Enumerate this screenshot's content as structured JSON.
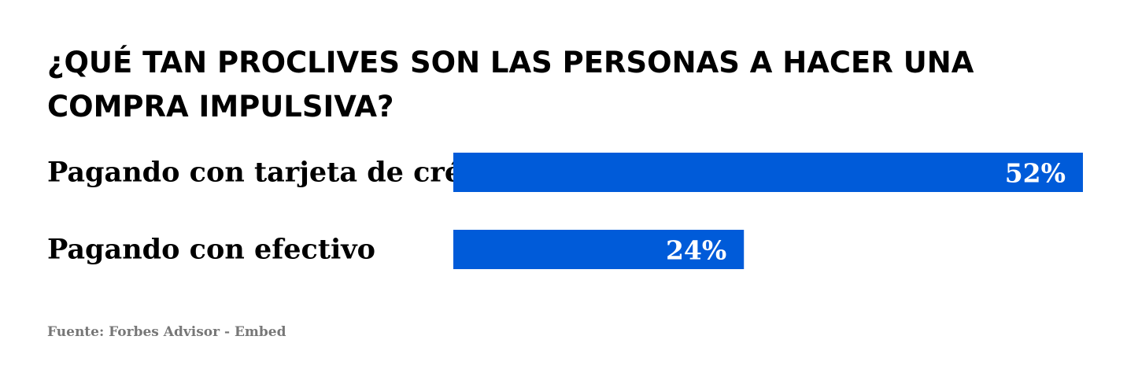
{
  "chart_data": {
    "type": "bar",
    "orientation": "horizontal",
    "title": "¿QUÉ TAN PROCLIVES SON LAS PERSONAS A HACER UNA COMPRA IMPULSIVA?",
    "categories": [
      "Pagando con tarjeta de crédito",
      "Pagando con efectivo"
    ],
    "values": [
      52,
      24
    ],
    "value_labels": [
      "52%",
      "24%"
    ],
    "unit": "%",
    "xlim": [
      0,
      52
    ],
    "grid": false,
    "legend": "none",
    "bar_color": "#005BD9",
    "source": "Fuente: Forbes Advisor - Embed"
  },
  "colors": {
    "bar": "#005BD9",
    "title": "#000000",
    "source": "#777777"
  }
}
